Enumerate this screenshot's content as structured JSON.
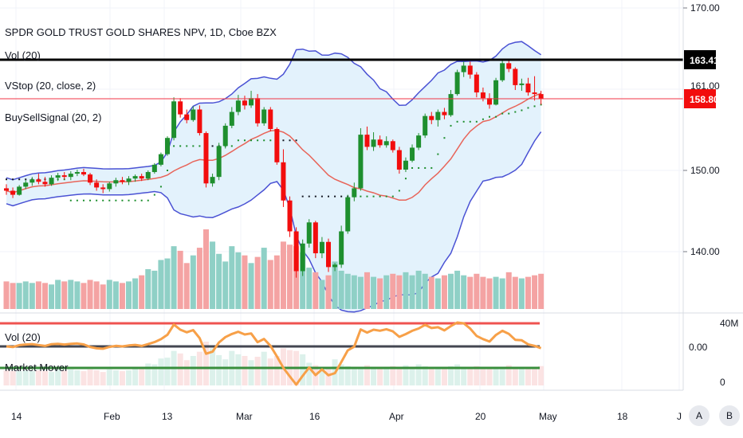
{
  "header": {
    "title": "SPDR GOLD TRUST GOLD SHARES NPV, 1D, Cboe BZX",
    "indicators": [
      "Vol (20)",
      "VStop (20, close, 2)",
      "BuySellSignal (20, 2)"
    ]
  },
  "subpane": {
    "labels": [
      "Vol (20)",
      "Market Mover"
    ],
    "axis_labels": [
      "40M",
      "0.00",
      "0"
    ]
  },
  "price_tags": {
    "black": "163.41",
    "red": "158.80",
    "partial": "161.00"
  },
  "buttons": {
    "a": "A",
    "b": "B"
  },
  "colors": {
    "up": "#1e8f2e",
    "down": "#f20d0d",
    "band": "#4a52d4",
    "band_fill": "#e3f2fc",
    "basis": "#e8655a",
    "vol_up": "#8fd0c6",
    "vol_down": "#f4a3a3"
  },
  "chart_data": {
    "type": "candlestick",
    "title": "SPDR GOLD TRUST GOLD SHARES NPV, 1D, Cboe BZX",
    "yaxis": {
      "ticks": [
        "170.00",
        "150.00",
        "140.00"
      ],
      "range": [
        132,
        172
      ]
    },
    "xaxis": {
      "ticks": [
        "14",
        "Feb",
        "13",
        "Mar",
        "16",
        "Apr",
        "20",
        "May",
        "18",
        "J"
      ]
    },
    "horizontal_lines": [
      163.41,
      158.8
    ],
    "ohlc": [
      [
        147.8,
        148.3,
        147,
        147.5
      ],
      [
        147.5,
        147.9,
        146.6,
        147
      ],
      [
        147,
        148.2,
        146.9,
        148
      ],
      [
        148,
        148.8,
        147.7,
        148.5
      ],
      [
        148.5,
        149.2,
        148.1,
        148.9
      ],
      [
        148.9,
        149.6,
        148.3,
        148.6
      ],
      [
        148.6,
        149.2,
        148,
        148.3
      ],
      [
        148.3,
        149.4,
        148.1,
        149.1
      ],
      [
        149.1,
        149.7,
        148.7,
        149.4
      ],
      [
        149.4,
        149.8,
        148.9,
        149.2
      ],
      [
        149.2,
        149.9,
        148.8,
        149.6
      ],
      [
        149.6,
        150.1,
        149.3,
        149.8
      ],
      [
        149.8,
        150.2,
        149.3,
        149.5
      ],
      [
        149.5,
        149.7,
        148.2,
        148.5
      ],
      [
        148.5,
        148.9,
        147.5,
        147.9
      ],
      [
        147.9,
        148.3,
        147.2,
        147.7
      ],
      [
        147.7,
        148.6,
        147.4,
        148.4
      ],
      [
        148.4,
        149.1,
        148,
        148.8
      ],
      [
        148.8,
        149.2,
        148.3,
        148.6
      ],
      [
        148.6,
        149.3,
        148.2,
        149
      ],
      [
        149,
        149.5,
        148.6,
        149.3
      ],
      [
        149.3,
        149.6,
        148.7,
        149
      ],
      [
        149,
        150,
        148.8,
        149.8
      ],
      [
        149.8,
        150.9,
        149.6,
        150.7
      ],
      [
        150.7,
        152.2,
        150.5,
        152
      ],
      [
        152,
        154.2,
        151.8,
        154
      ],
      [
        154,
        159,
        153.7,
        158.5
      ],
      [
        158.5,
        158.9,
        156.5,
        156.9
      ],
      [
        156.9,
        157.5,
        155.8,
        156.2
      ],
      [
        156.2,
        157.9,
        156,
        157.5
      ],
      [
        157.5,
        158,
        154.3,
        154.6
      ],
      [
        154.6,
        154.8,
        147.9,
        148.4
      ],
      [
        148.4,
        149.6,
        148,
        149.2
      ],
      [
        149.2,
        153.4,
        148.8,
        153
      ],
      [
        153,
        155.8,
        152.7,
        155.5
      ],
      [
        155.5,
        157.8,
        155.2,
        157.2
      ],
      [
        157.2,
        159.3,
        156.8,
        158.6
      ],
      [
        158.6,
        159.2,
        157.5,
        158
      ],
      [
        158,
        159.8,
        157.7,
        158.9
      ],
      [
        158.9,
        159.4,
        155.4,
        155.8
      ],
      [
        155.8,
        157.8,
        155.5,
        157.5
      ],
      [
        157.5,
        157.8,
        154.8,
        155.1
      ],
      [
        155.1,
        155.3,
        150.7,
        151
      ],
      [
        151,
        152.6,
        145.5,
        146.3
      ],
      [
        146.3,
        146.8,
        141.8,
        142.5
      ],
      [
        142.5,
        143,
        136.8,
        137.6
      ],
      [
        137.6,
        141.5,
        137,
        141
      ],
      [
        141,
        144,
        140.5,
        143.6
      ],
      [
        143.6,
        143.8,
        139.2,
        139.8
      ],
      [
        139.8,
        141.8,
        139.2,
        141.2
      ],
      [
        141.2,
        141.6,
        137.5,
        138.1
      ],
      [
        138.1,
        138.6,
        137.6,
        138.4
      ],
      [
        138.4,
        143.2,
        138,
        142.5
      ],
      [
        142.5,
        147,
        142.2,
        146.7
      ],
      [
        146.7,
        148.5,
        146.2,
        147.8
      ],
      [
        147.8,
        155.2,
        147.5,
        154.4
      ],
      [
        154.4,
        155.4,
        152.5,
        152.9
      ],
      [
        152.9,
        154.7,
        152.4,
        153.8
      ],
      [
        153.8,
        154.3,
        152.8,
        153.1
      ],
      [
        153.1,
        154.2,
        152.8,
        153.6
      ],
      [
        153.6,
        153.8,
        152.2,
        152.5
      ],
      [
        152.5,
        152.9,
        149.6,
        150.1
      ],
      [
        150.1,
        151.6,
        149.8,
        151.2
      ],
      [
        151.2,
        153.2,
        151,
        152.8
      ],
      [
        152.8,
        154.6,
        152.5,
        154.3
      ],
      [
        154.3,
        157,
        154,
        156.7
      ],
      [
        156.7,
        157.2,
        155.7,
        156.2
      ],
      [
        156.2,
        157.5,
        155.4,
        157.2
      ],
      [
        157.2,
        157.7,
        156.3,
        156.8
      ],
      [
        156.8,
        159.9,
        156.6,
        159.4
      ],
      [
        159.4,
        162.4,
        159.2,
        162.1
      ],
      [
        162.1,
        163.4,
        161.5,
        162.9
      ],
      [
        162.9,
        163.4,
        161.3,
        161.8
      ],
      [
        161.8,
        162.1,
        159,
        159.6
      ],
      [
        159.6,
        160.2,
        158.5,
        158.9
      ],
      [
        158.9,
        159.5,
        157.6,
        158.1
      ],
      [
        158.1,
        161.4,
        158,
        161.1
      ],
      [
        161.1,
        163.7,
        160.9,
        163.2
      ],
      [
        163.2,
        163.5,
        162.1,
        162.5
      ],
      [
        162.5,
        162.7,
        159.9,
        160.5
      ],
      [
        160.5,
        161.3,
        159.8,
        160.7
      ],
      [
        160.7,
        161.4,
        159.2,
        159.6
      ],
      [
        159.6,
        161.6,
        158.6,
        159.4
      ],
      [
        159.4,
        159.8,
        158.1,
        158.8
      ]
    ],
    "vstop_series": [
      148.9,
      148.9,
      148.9,
      148.9,
      148.9,
      148.9,
      148.9,
      148.9,
      148.9,
      148.9,
      146.3,
      146.3,
      146.3,
      146.3,
      146.3,
      146.3,
      146.3,
      146.3,
      146.3,
      146.3,
      146.3,
      146.3,
      146.3,
      147,
      148,
      150,
      153,
      153,
      153,
      153,
      153,
      153,
      153,
      153,
      153,
      153,
      153.7,
      153.7,
      153.7,
      153.7,
      153.7,
      153.7,
      153.7,
      153.7,
      153.7,
      153.7,
      146.8,
      146.8,
      146.8,
      146.8,
      146.8,
      146.8,
      146.8,
      146.8,
      146.8,
      146.8,
      146.8,
      146.8,
      146.8,
      146.8,
      146.8,
      147.5,
      149,
      150.3,
      150.3,
      150.3,
      150.3,
      152,
      154,
      155.5,
      156,
      156,
      156,
      156,
      156.3,
      156.6,
      156.6,
      157,
      157,
      157.2,
      157.4,
      157.7,
      157.9,
      158.1
    ],
    "volume": [
      1.8,
      1.7,
      1.7,
      1.8,
      1.7,
      1.8,
      1.7,
      1.6,
      1.9,
      1.8,
      1.9,
      1.8,
      1.7,
      1.9,
      1.8,
      1.6,
      1.9,
      1.8,
      1.7,
      1.8,
      2.0,
      2.2,
      2.6,
      2.5,
      3.2,
      3.3,
      4.1,
      3.8,
      3.0,
      3.5,
      4.0,
      5.2,
      4.4,
      3.6,
      3.1,
      4.1,
      3.7,
      3.5,
      3.0,
      3.4,
      4.0,
      3.2,
      3.5,
      4.4,
      4.2,
      4.1,
      3.7,
      2.7,
      2.4,
      1.9,
      2.2,
      3.1,
      2.5,
      2.3,
      2.2,
      2.1,
      2.4,
      2.1,
      2.0,
      2.2,
      2.3,
      2.2,
      2.4,
      2.2,
      2.5,
      2.3,
      2.1,
      2.0,
      2.2,
      2.3,
      2.5,
      2.2,
      2.1,
      2.3,
      2.1,
      2.0,
      2.1,
      2.0,
      2.4,
      2.1,
      2.0,
      2.1,
      2.2,
      2.3
    ]
  }
}
